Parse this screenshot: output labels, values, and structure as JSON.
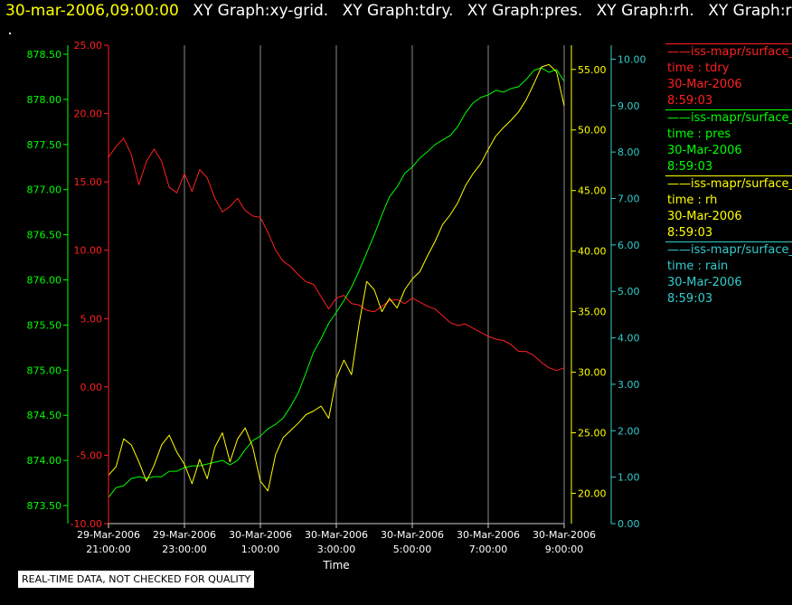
{
  "header": {
    "timestamp": "30-mar-2006,09:00:00",
    "titles": [
      "XY Graph:xy-grid.",
      "XY Graph:tdry.",
      "XY Graph:pres.",
      "XY Graph:rh.",
      "XY Graph:rain"
    ]
  },
  "legend": [
    {
      "name": "iss-mapr/surface_m",
      "var": "time : tdry",
      "date": "30-Mar-2006",
      "time": "8:59:03",
      "color": "#ff2020"
    },
    {
      "name": "iss-mapr/surface_m",
      "var": "time : pres",
      "date": "30-Mar-2006",
      "time": "8:59:03",
      "color": "#00ff00"
    },
    {
      "name": "iss-mapr/surface_m",
      "var": "time : rh",
      "date": "30-Mar-2006",
      "time": "8:59:03",
      "color": "#ffff00"
    },
    {
      "name": "iss-mapr/surface_m",
      "var": "time : rain",
      "date": "30-Mar-2006",
      "time": "8:59:03",
      "color": "#33cccc"
    }
  ],
  "note": "REAL-TIME DATA, NOT CHECKED FOR QUALITY",
  "chart_data": {
    "type": "line",
    "xlabel": "Time",
    "x_ticks": [
      {
        "date": "29-Mar-2006",
        "time": "21:00:00",
        "hour": 0
      },
      {
        "date": "29-Mar-2006",
        "time": "23:00:00",
        "hour": 2
      },
      {
        "date": "30-Mar-2006",
        "time": "1:00:00",
        "hour": 4
      },
      {
        "date": "30-Mar-2006",
        "time": "3:00:00",
        "hour": 6
      },
      {
        "date": "30-Mar-2006",
        "time": "5:00:00",
        "hour": 8
      },
      {
        "date": "30-Mar-2006",
        "time": "7:00:00",
        "hour": 10
      },
      {
        "date": "30-Mar-2006",
        "time": "9:00:00",
        "hour": 12
      }
    ],
    "xlim_hours": [
      0,
      12
    ],
    "grid": "vertical",
    "axes": [
      {
        "id": "pres",
        "color": "#00ff00",
        "side": "left",
        "ylim": [
          873.3,
          878.6
        ],
        "ticks": [
          "873.50",
          "874.00",
          "874.50",
          "875.00",
          "875.50",
          "876.00",
          "876.50",
          "877.00",
          "877.50",
          "878.00",
          "878.50"
        ]
      },
      {
        "id": "tdry",
        "color": "#ff2020",
        "side": "left",
        "ylim": [
          -10,
          25
        ],
        "ticks": [
          "-10.00",
          "-5.00",
          "0.00",
          "5.00",
          "10.00",
          "15.00",
          "20.00",
          "25.00"
        ]
      },
      {
        "id": "rh",
        "color": "#ffff00",
        "side": "right",
        "ylim": [
          17.5,
          57
        ],
        "ticks": [
          "20.00",
          "25.00",
          "30.00",
          "35.00",
          "40.00",
          "45.00",
          "50.00",
          "55.00"
        ]
      },
      {
        "id": "rain",
        "color": "#33cccc",
        "side": "right",
        "ylim": [
          0,
          10.3
        ],
        "ticks": [
          "0.00",
          "1.00",
          "2.00",
          "3.00",
          "4.00",
          "5.00",
          "6.00",
          "7.00",
          "8.00",
          "9.00",
          "10.00"
        ]
      }
    ],
    "series": [
      {
        "name": "tdry",
        "axis": "tdry",
        "color": "#ff2020",
        "x": [
          0,
          0.2,
          0.4,
          0.6,
          0.8,
          1.0,
          1.2,
          1.4,
          1.6,
          1.8,
          2.0,
          2.2,
          2.4,
          2.6,
          2.8,
          3.0,
          3.2,
          3.4,
          3.6,
          3.8,
          4.0,
          4.2,
          4.4,
          4.6,
          4.8,
          5.0,
          5.2,
          5.4,
          5.6,
          5.8,
          6.0,
          6.2,
          6.4,
          6.6,
          6.8,
          7.0,
          7.2,
          7.4,
          7.6,
          7.8,
          8.0,
          8.2,
          8.4,
          8.6,
          8.8,
          9.0,
          9.2,
          9.4,
          9.6,
          9.8,
          10.0,
          10.2,
          10.4,
          10.6,
          10.8,
          11.0,
          11.2,
          11.4,
          11.6,
          11.8,
          12.0
        ],
        "y": [
          16.8,
          17.6,
          18.2,
          17.0,
          14.8,
          16.5,
          17.4,
          16.5,
          14.6,
          14.2,
          15.6,
          14.3,
          15.9,
          15.3,
          13.8,
          12.8,
          13.2,
          13.8,
          12.9,
          12.5,
          12.4,
          11.3,
          10.0,
          9.2,
          8.8,
          8.2,
          7.7,
          7.5,
          6.6,
          5.7,
          6.5,
          6.7,
          6.1,
          6.0,
          5.6,
          5.5,
          5.9,
          6.3,
          6.4,
          6.1,
          6.5,
          6.2,
          5.9,
          5.7,
          5.2,
          4.7,
          4.5,
          4.6,
          4.3,
          4.0,
          3.7,
          3.5,
          3.4,
          3.1,
          2.6,
          2.6,
          2.3,
          1.8,
          1.4,
          1.2,
          1.4
        ]
      },
      {
        "name": "pres",
        "axis": "pres",
        "color": "#00ff00",
        "x": [
          0,
          0.2,
          0.4,
          0.6,
          0.8,
          1.0,
          1.2,
          1.4,
          1.6,
          1.8,
          2.0,
          2.2,
          2.4,
          2.6,
          2.8,
          3.0,
          3.2,
          3.4,
          3.6,
          3.8,
          4.0,
          4.2,
          4.4,
          4.6,
          4.8,
          5.0,
          5.2,
          5.4,
          5.6,
          5.8,
          6.0,
          6.2,
          6.4,
          6.6,
          6.8,
          7.0,
          7.2,
          7.4,
          7.6,
          7.8,
          8.0,
          8.2,
          8.4,
          8.6,
          8.8,
          9.0,
          9.2,
          9.4,
          9.6,
          9.8,
          10.0,
          10.2,
          10.4,
          10.6,
          10.8,
          11.0,
          11.2,
          11.4,
          11.6,
          11.8,
          12.0
        ],
        "y": [
          873.59,
          873.7,
          873.72,
          873.8,
          873.82,
          873.8,
          873.82,
          873.82,
          873.88,
          873.88,
          873.92,
          873.94,
          873.94,
          873.96,
          873.98,
          874.0,
          873.95,
          874.0,
          874.12,
          874.22,
          874.27,
          874.35,
          874.4,
          874.47,
          874.6,
          874.75,
          874.97,
          875.2,
          875.35,
          875.52,
          875.64,
          875.77,
          875.92,
          876.1,
          876.3,
          876.5,
          876.72,
          876.92,
          877.03,
          877.18,
          877.25,
          877.35,
          877.42,
          877.5,
          877.55,
          877.6,
          877.7,
          877.85,
          877.96,
          878.02,
          878.05,
          878.1,
          878.08,
          878.12,
          878.14,
          878.22,
          878.32,
          878.35,
          878.3,
          878.33,
          878.2
        ]
      },
      {
        "name": "rh",
        "axis": "rh",
        "color": "#ffff00",
        "x": [
          0,
          0.2,
          0.4,
          0.6,
          0.8,
          1.0,
          1.2,
          1.4,
          1.6,
          1.8,
          2.0,
          2.2,
          2.4,
          2.6,
          2.8,
          3.0,
          3.2,
          3.4,
          3.6,
          3.8,
          4.0,
          4.2,
          4.4,
          4.6,
          4.8,
          5.0,
          5.2,
          5.4,
          5.6,
          5.8,
          6.0,
          6.2,
          6.4,
          6.6,
          6.8,
          7.0,
          7.2,
          7.4,
          7.6,
          7.8,
          8.0,
          8.2,
          8.4,
          8.6,
          8.8,
          9.0,
          9.2,
          9.4,
          9.6,
          9.8,
          10.0,
          10.2,
          10.4,
          10.6,
          10.8,
          11.0,
          11.2,
          11.4,
          11.6,
          11.8,
          12.0
        ],
        "y": [
          21.5,
          22.2,
          24.5,
          24.0,
          22.6,
          21.0,
          22.3,
          24.0,
          24.8,
          23.4,
          22.4,
          20.8,
          22.8,
          21.2,
          23.8,
          25.0,
          22.6,
          24.5,
          25.4,
          23.8,
          21.0,
          20.2,
          23.2,
          24.6,
          25.2,
          25.8,
          26.5,
          26.8,
          27.2,
          26.2,
          29.5,
          31.0,
          29.8,
          34.0,
          37.5,
          36.8,
          35.0,
          36.1,
          35.3,
          36.8,
          37.7,
          38.3,
          39.6,
          40.8,
          42.2,
          43.0,
          44.0,
          45.4,
          46.4,
          47.2,
          48.4,
          49.5,
          50.2,
          50.8,
          51.5,
          52.5,
          53.8,
          55.2,
          55.4,
          54.8,
          52.0
        ]
      },
      {
        "name": "rain",
        "axis": "rain",
        "color": "#33cccc",
        "x": [
          0,
          12
        ],
        "y": [
          0,
          0
        ]
      }
    ]
  }
}
